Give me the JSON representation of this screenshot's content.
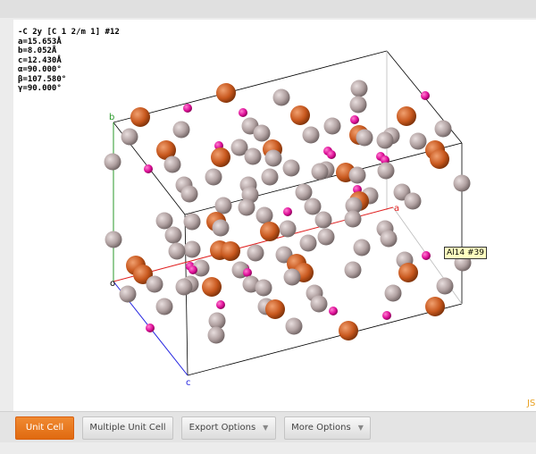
{
  "viewer": {
    "info": [
      "-C 2y [C 1 2/m 1] #12",
      "a=15.653Å",
      "b=8.052Å",
      "c=12.430Å",
      "α=90.000°",
      "β=107.580°",
      "γ=90.000°"
    ],
    "axes": {
      "a": "a",
      "b": "b",
      "c": "c",
      "origin": "o"
    },
    "tooltip": "Al14 #39",
    "watermark": "JS"
  },
  "toolbar": {
    "buttons": [
      "Unit Cell",
      "Multiple Unit Cell",
      "Export Options",
      "More Options"
    ]
  }
}
